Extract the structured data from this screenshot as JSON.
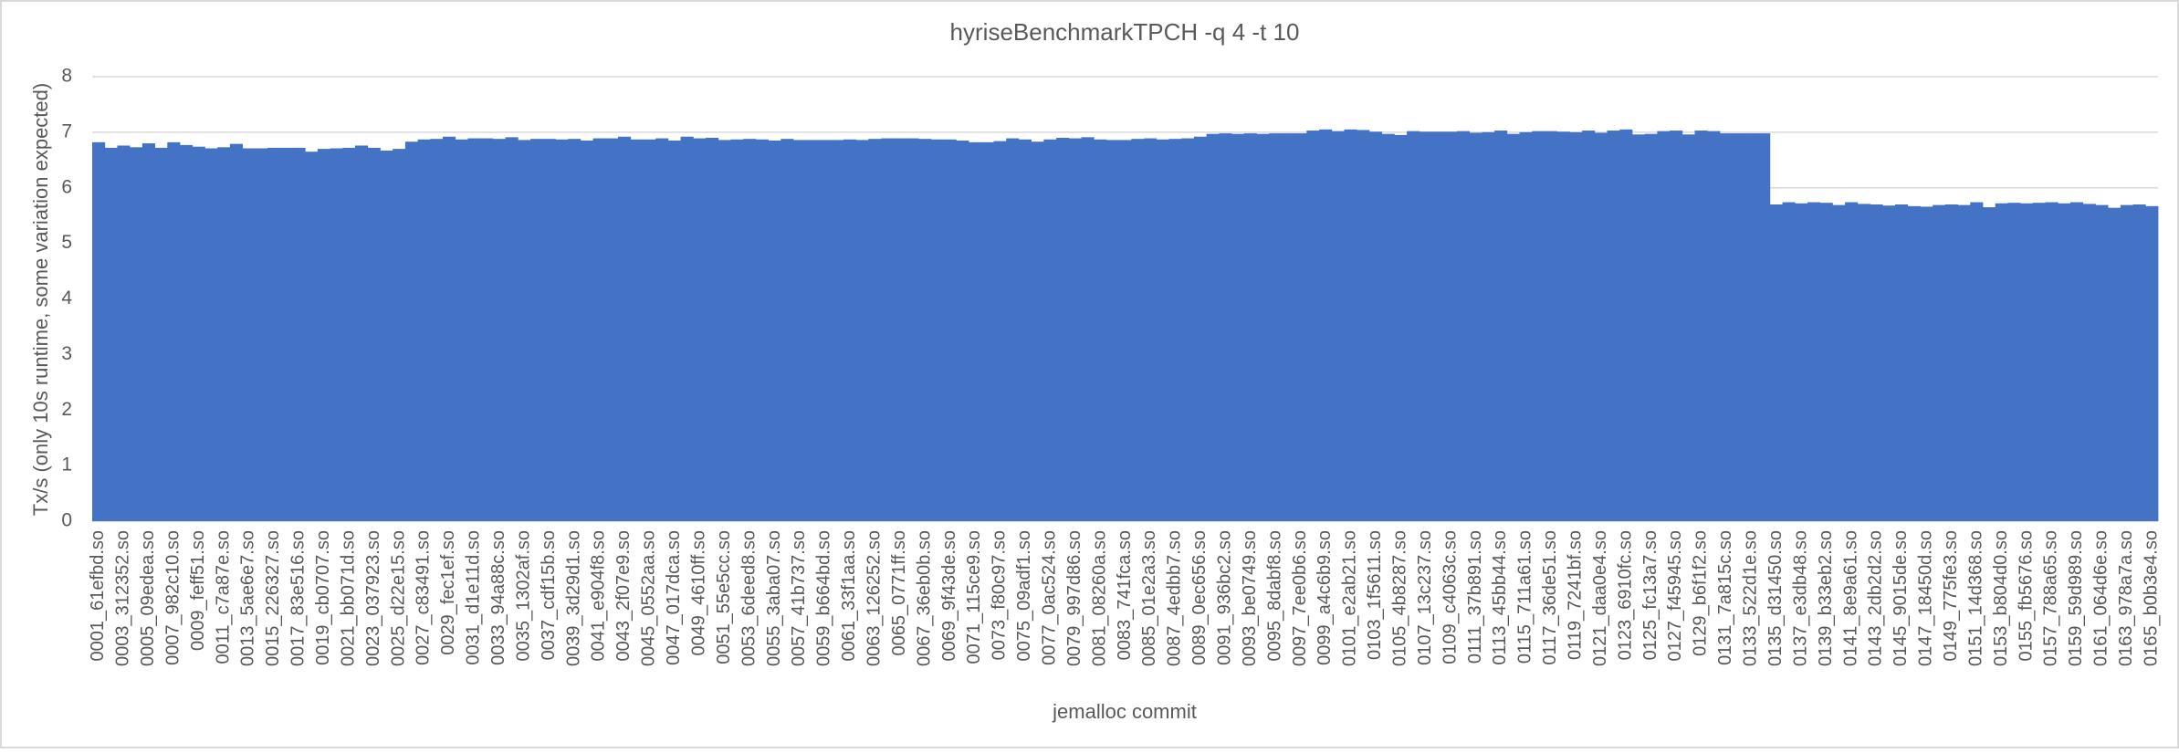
{
  "chart_data": {
    "type": "bar",
    "title": "hyriseBenchmarkTPCH -q 4 -t 10",
    "x_label": "jemalloc commit",
    "y_label": "Tx/s (only 10s runtime, some variation expected)",
    "color": "#4472c4",
    "grid": true,
    "ylim": [
      0,
      8
    ],
    "yticks": [
      0,
      1,
      2,
      3,
      4,
      5,
      6,
      7,
      8
    ],
    "categories": [
      "0001_61efbd.so",
      null,
      "0003_312352.so",
      null,
      "0005_09edea.so",
      null,
      "0007_982c10.so",
      null,
      "0009_feff51.so",
      null,
      "0011_c7a87e.so",
      null,
      "0013_5ae6e7.so",
      null,
      "0015_226327.so",
      null,
      "0017_83e516.so",
      null,
      "0019_cb0707.so",
      null,
      "0021_bb071d.so",
      null,
      "0023_037923.so",
      null,
      "0025_d22e15.so",
      null,
      "0027_c83491.so",
      null,
      "0029_fec1ef.so",
      null,
      "0031_d1e11d.so",
      null,
      "0033_94a88c.so",
      null,
      "0035_1302af.so",
      null,
      "0037_cdf15b.so",
      null,
      "0039_3d29d1.so",
      null,
      "0041_e904f8.so",
      null,
      "0043_2f07e9.so",
      null,
      "0045_0552aa.so",
      null,
      "0047_017dca.so",
      null,
      "0049_4610ff.so",
      null,
      "0051_55e5cc.so",
      null,
      "0053_6deed8.so",
      null,
      "0055_3aba07.so",
      null,
      "0057_41b737.so",
      null,
      "0059_b664bd.so",
      null,
      "0061_33f1aa.so",
      null,
      "0063_126252.so",
      null,
      "0065_0771ff.so",
      null,
      "0067_36eb0b.so",
      null,
      "0069_9f43de.so",
      null,
      "0071_115ce9.so",
      null,
      "0073_f80c97.so",
      null,
      "0075_09adf1.so",
      null,
      "0077_0ac524.so",
      null,
      "0079_997d86.so",
      null,
      "0081_08260a.so",
      null,
      "0083_741fca.so",
      null,
      "0085_01e2a3.so",
      null,
      "0087_4edbb7.so",
      null,
      "0089_0ec656.so",
      null,
      "0091_936bc2.so",
      null,
      "0093_be0749.so",
      null,
      "0095_8dabf8.so",
      null,
      "0097_7ee0b6.so",
      null,
      "0099_a4c6b9.so",
      null,
      "0101_e2ab21.so",
      null,
      "0103_1f5611.so",
      null,
      "0105_4b8287.so",
      null,
      "0107_13c237.so",
      null,
      "0109_c4063c.so",
      null,
      "0111_37b891.so",
      null,
      "0113_45bb44.so",
      null,
      "0115_711a61.so",
      null,
      "0117_36de51.so",
      null,
      "0119_7241bf.so",
      null,
      "0121_daa0e4.so",
      null,
      "0123_6910fc.so",
      null,
      "0125_fc13a7.so",
      null,
      "0127_f45945.so",
      null,
      "0129_b6f1f2.so",
      null,
      "0131_7a815c.so",
      null,
      "0133_522d1e.so",
      null,
      "0135_d31450.so",
      null,
      "0137_e3db48.so",
      null,
      "0139_b33eb2.so",
      null,
      "0141_8e9a61.so",
      null,
      "0143_2db2d2.so",
      null,
      "0145_9015de.so",
      null,
      "0147_18450d.so",
      null,
      "0149_775fe3.so",
      null,
      "0151_14d368.so",
      null,
      "0153_b804d0.so",
      null,
      "0155_fb5676.so",
      null,
      "0157_788a65.so",
      null,
      "0159_59d989.so",
      null,
      "0161_064d6e.so",
      null,
      "0163_978a7a.so",
      null,
      "0165_b0b3e4.so"
    ],
    "values": [
      6.82,
      6.72,
      6.76,
      6.73,
      6.8,
      6.72,
      6.82,
      6.77,
      6.74,
      6.71,
      6.73,
      6.79,
      6.71,
      6.71,
      6.72,
      6.72,
      6.72,
      6.65,
      6.7,
      6.71,
      6.72,
      6.76,
      6.72,
      6.67,
      6.7,
      6.83,
      6.87,
      6.88,
      6.92,
      6.87,
      6.89,
      6.89,
      6.88,
      6.91,
      6.86,
      6.88,
      6.88,
      6.87,
      6.88,
      6.85,
      6.89,
      6.89,
      6.92,
      6.87,
      6.87,
      6.89,
      6.85,
      6.92,
      6.89,
      6.9,
      6.86,
      6.87,
      6.88,
      6.87,
      6.85,
      6.88,
      6.86,
      6.86,
      6.86,
      6.86,
      6.87,
      6.86,
      6.88,
      6.89,
      6.89,
      6.89,
      6.88,
      6.87,
      6.87,
      6.85,
      6.82,
      6.82,
      6.84,
      6.89,
      6.87,
      6.83,
      6.87,
      6.9,
      6.89,
      6.91,
      6.87,
      6.86,
      6.86,
      6.88,
      6.89,
      6.87,
      6.88,
      6.89,
      6.92,
      6.97,
      6.98,
      6.97,
      6.98,
      6.97,
      6.98,
      6.98,
      6.98,
      7.03,
      7.05,
      7.02,
      7.05,
      7.04,
      7.01,
      6.97,
      6.95,
      7.02,
      7.01,
      7.01,
      7.01,
      7.02,
      6.99,
      7.0,
      7.03,
      6.97,
      7.0,
      7.02,
      7.02,
      7.01,
      7.0,
      7.03,
      6.99,
      7.03,
      7.05,
      6.96,
      6.97,
      7.02,
      7.03,
      6.96,
      7.03,
      7.02,
      6.98,
      6.98,
      6.98,
      6.98,
      5.7,
      5.74,
      5.72,
      5.74,
      5.73,
      5.69,
      5.74,
      5.71,
      5.7,
      5.68,
      5.7,
      5.67,
      5.66,
      5.69,
      5.7,
      5.69,
      5.74,
      5.65,
      5.72,
      5.73,
      5.72,
      5.73,
      5.74,
      5.72,
      5.74,
      5.71,
      5.69,
      5.64,
      5.69,
      5.7,
      5.67
    ]
  }
}
